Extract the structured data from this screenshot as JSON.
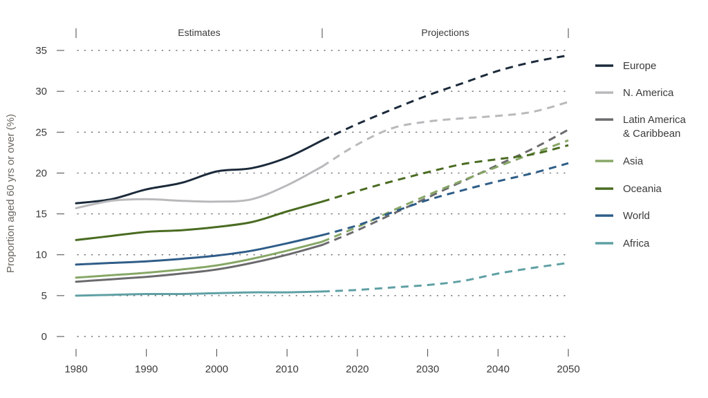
{
  "chart_data": {
    "type": "line",
    "title": "",
    "xlabel": "",
    "ylabel": "Proportion aged 60 yrs or over (%)",
    "xlim": [
      1980,
      2050
    ],
    "ylim": [
      0,
      35
    ],
    "x_ticks": [
      "1980",
      "1990",
      "2000",
      "2010",
      "2020",
      "2030",
      "2040",
      "2050"
    ],
    "y_ticks": [
      "0",
      "5",
      "10",
      "15",
      "20",
      "25",
      "30",
      "35"
    ],
    "grid": "horizontal dotted",
    "legend_position": "right",
    "periods": [
      {
        "label": "Estimates",
        "from": 1980,
        "to": 2015,
        "style": "solid"
      },
      {
        "label": "Projections",
        "from": 2015,
        "to": 2050,
        "style": "dashed"
      }
    ],
    "x": [
      1980,
      1985,
      1990,
      1995,
      2000,
      2005,
      2010,
      2015,
      2020,
      2025,
      2030,
      2035,
      2040,
      2045,
      2050
    ],
    "series": [
      {
        "name": "Europe",
        "color": "#1b2a3a",
        "values": [
          16.3,
          16.8,
          18.0,
          18.8,
          20.2,
          20.6,
          21.9,
          24.0,
          26.0,
          27.8,
          29.5,
          31.0,
          32.5,
          33.6,
          34.4
        ]
      },
      {
        "name": "N. America",
        "color": "#b9b9bc",
        "values": [
          15.7,
          16.6,
          16.8,
          16.6,
          16.5,
          16.8,
          18.5,
          20.8,
          23.5,
          25.5,
          26.3,
          26.7,
          27.0,
          27.5,
          28.7
        ]
      },
      {
        "name": "Latin America & Caribbean",
        "color": "#6b6a6d",
        "values": [
          6.7,
          7.0,
          7.3,
          7.7,
          8.2,
          9.0,
          10.0,
          11.2,
          13.0,
          15.0,
          17.0,
          19.0,
          21.0,
          23.0,
          25.3
        ]
      },
      {
        "name": "Asia",
        "color": "#87a766",
        "values": [
          7.2,
          7.5,
          7.8,
          8.2,
          8.7,
          9.5,
          10.5,
          11.6,
          13.4,
          15.4,
          17.3,
          19.1,
          20.8,
          22.4,
          24.0
        ]
      },
      {
        "name": "Oceania",
        "color": "#4a6b21",
        "values": [
          11.8,
          12.3,
          12.8,
          13.0,
          13.4,
          14.0,
          15.3,
          16.5,
          17.8,
          19.0,
          20.1,
          21.1,
          21.7,
          22.3,
          23.4
        ]
      },
      {
        "name": "World",
        "color": "#2f5d88",
        "values": [
          8.8,
          9.0,
          9.2,
          9.5,
          9.9,
          10.5,
          11.4,
          12.4,
          13.6,
          15.2,
          16.7,
          17.9,
          19.0,
          20.0,
          21.2
        ]
      },
      {
        "name": "Africa",
        "color": "#5fa0a4",
        "values": [
          5.0,
          5.1,
          5.2,
          5.2,
          5.3,
          5.4,
          5.4,
          5.5,
          5.7,
          6.0,
          6.3,
          6.8,
          7.7,
          8.4,
          9.0
        ]
      }
    ]
  }
}
